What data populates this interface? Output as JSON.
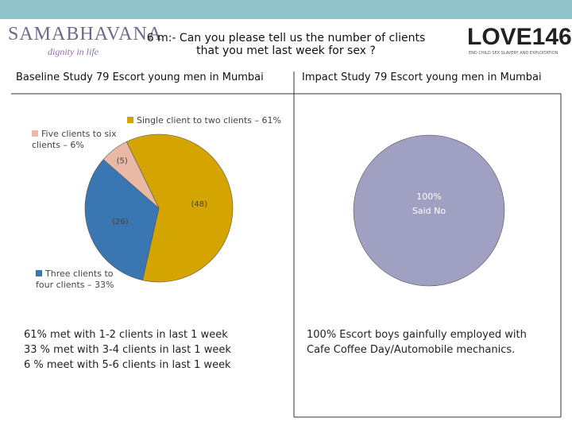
{
  "header": {
    "title_line1": "6 m:- Can you please tell us the number of clients",
    "title_line2": "that you met last week for sex ?",
    "logo_left": "SAMABHAVANA",
    "logo_left_tagline": "dignity in life",
    "logo_right": "LOVE146",
    "logo_right_tagline": "END CHILD SEX SLAVERY AND EXPLOITATION"
  },
  "panels": [
    {
      "heading": "Baseline Study 79 Escort young men in Mumbai",
      "notes": [
        "61% met with 1-2 clients in last 1 week",
        "33 % met with 3-4 clients in last 1 week",
        "6 % meet with 5-6 clients in last 1 week"
      ]
    },
    {
      "heading": "Impact Study 79 Escort young men in Mumbai",
      "notes": [
        "100% Escort boys gainfully employed with",
        "Cafe Coffee Day/Automobile mechanics."
      ]
    }
  ],
  "chart_data": [
    {
      "type": "pie",
      "categories": [
        "Single client to two clients – 61%",
        "Three clients to four clients – 33%",
        "Five clients to six clients – 6%"
      ],
      "values": [
        48,
        26,
        5
      ],
      "value_labels": [
        "(48)",
        "(26)",
        "(5)"
      ],
      "colors": [
        "#d4a400",
        "#3a77b2",
        "#e9b9a6"
      ]
    },
    {
      "type": "pie",
      "categories": [
        "Said No"
      ],
      "values": [
        100
      ],
      "value_labels": [
        "100%"
      ],
      "colors": [
        "#9fa0c2"
      ]
    }
  ]
}
